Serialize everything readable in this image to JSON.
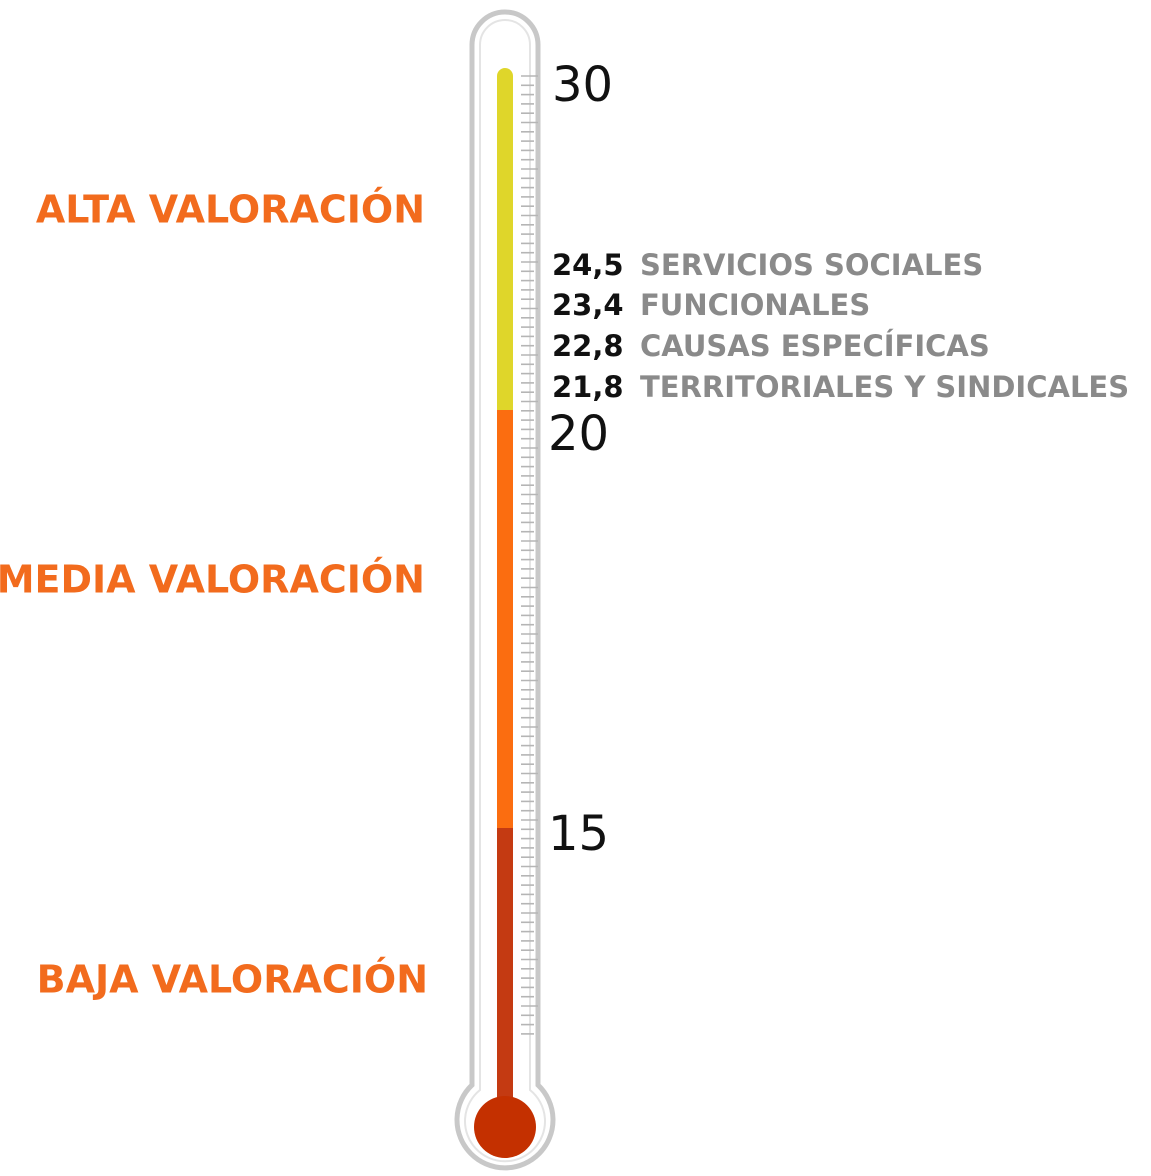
{
  "zones": [
    "ALTA VALORACIÓN",
    "MEDIA VALORACIÓN",
    "BAJA VALORACIÓN"
  ],
  "scale": [
    30,
    20,
    15
  ],
  "items": [
    {
      "value": "24,5",
      "label": "SERVICIOS SOCIALES"
    },
    {
      "value": "23,4",
      "label": "FUNCIONALES"
    },
    {
      "value": "22,8",
      "label": "CAUSAS ESPECÍFICAS"
    },
    {
      "value": "21,8",
      "label": "TERRITORIALES Y SINDICALES"
    }
  ]
}
